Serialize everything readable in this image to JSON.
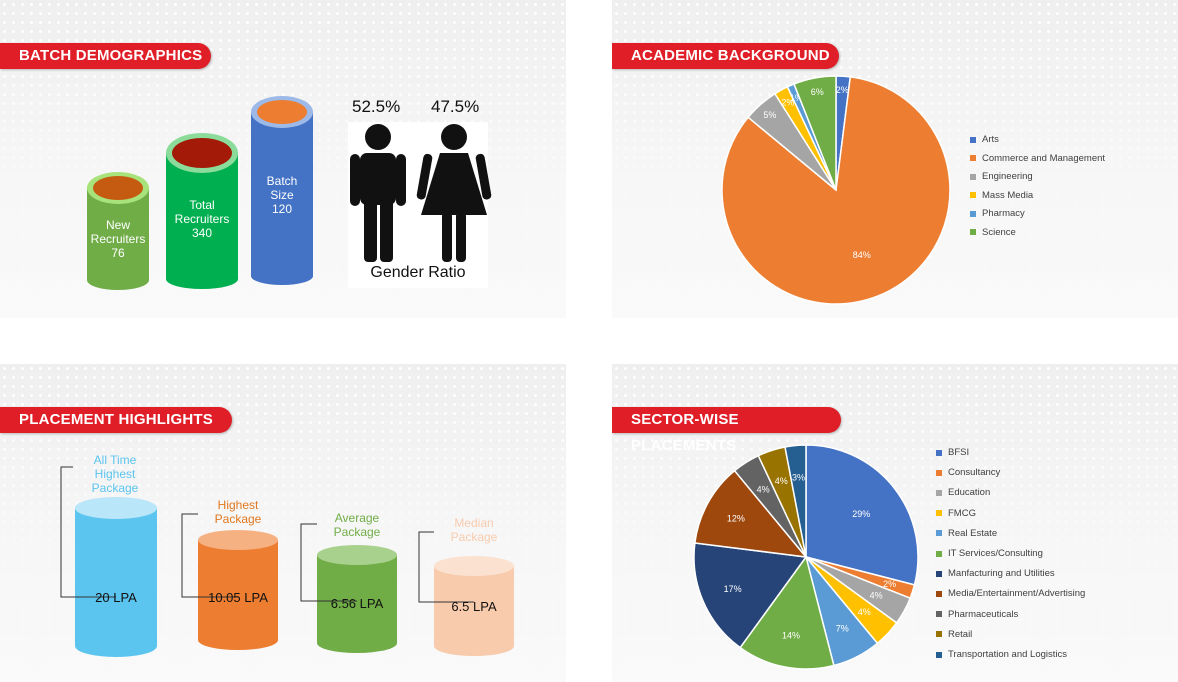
{
  "panels": {
    "batch": {
      "title": "BATCH DEMOGRAPHICS",
      "cylinders": [
        {
          "line1": "New",
          "line2": "Recruiters",
          "value": "76",
          "color": "#70ad47",
          "top": "#a7e27a",
          "inner": "#c55a11"
        },
        {
          "line1": "Total",
          "line2": "Recruiters",
          "value": "340",
          "color": "#00b050",
          "top": "#8bdc9a",
          "inner": "#a31a08"
        },
        {
          "line1": "Batch",
          "line2": "Size",
          "value": "120",
          "color": "#4472c4",
          "top": "#9db9e8",
          "inner": "#ed7d31"
        }
      ],
      "gender": {
        "male_pct": "52.5%",
        "female_pct": "47.5%",
        "caption": "Gender Ratio"
      }
    },
    "academic": {
      "title": "ACADEMIC BACKGROUND"
    },
    "placement": {
      "title": "PLACEMENT HIGHLIGHTS",
      "items": [
        {
          "label_lines": [
            "All Time",
            "Highest",
            "Package"
          ],
          "value": "20 LPA",
          "color": "#5bc5ef",
          "top": "#b9e6f8",
          "label_color": "#5bc5ef"
        },
        {
          "label_lines": [
            "Highest",
            "Package"
          ],
          "value": "10.05 LPA",
          "color": "#ed7d31",
          "top": "#f6b182",
          "label_color": "#e0781f"
        },
        {
          "label_lines": [
            "Average",
            "Package"
          ],
          "value": "6.56 LPA",
          "color": "#70ad47",
          "top": "#a9d18e",
          "label_color": "#70ad47"
        },
        {
          "label_lines": [
            "Median",
            "Package"
          ],
          "value": "6.5 LPA",
          "color": "#f8cbad",
          "top": "#fbe1cf",
          "label_color": "#f8cbad"
        }
      ]
    },
    "sector": {
      "title": "SECTOR-WISE PLACEMENTS"
    }
  },
  "chart_data": [
    {
      "type": "pie",
      "title": "",
      "categories": [
        "Arts",
        "Commerce and Management",
        "Engineering",
        "Mass Media",
        "Pharmacy",
        "Science"
      ],
      "values": [
        2,
        84,
        5,
        2,
        1,
        6
      ],
      "labels": [
        "2%",
        "84%",
        "5%",
        "2%",
        "1%",
        "6%"
      ],
      "colors": [
        "#4472c4",
        "#ed7d31",
        "#a5a5a5",
        "#ffc000",
        "#5b9bd5",
        "#70ad47"
      ],
      "legend": "right"
    },
    {
      "type": "pie",
      "title": "",
      "categories": [
        "BFSI",
        "Consultancy",
        "Education",
        "FMCG",
        "Real Estate",
        "IT Services/Consulting",
        "Manfacturing and Utilities",
        "Media/Entertainment/Advertising",
        "Pharmaceuticals",
        "Retail",
        "Transportation and Logistics"
      ],
      "values": [
        29,
        2,
        4,
        4,
        7,
        14,
        17,
        12,
        4,
        4,
        3
      ],
      "labels": [
        "29%",
        "2%",
        "4%",
        "4%",
        "7%",
        "14%",
        "17%",
        "12%",
        "4%",
        "4%",
        "3%"
      ],
      "colors": [
        "#4472c4",
        "#ed7d31",
        "#a5a5a5",
        "#ffc000",
        "#5b9bd5",
        "#70ad47",
        "#264478",
        "#9e480e",
        "#636363",
        "#997300",
        "#255e91"
      ],
      "legend": "right"
    }
  ]
}
